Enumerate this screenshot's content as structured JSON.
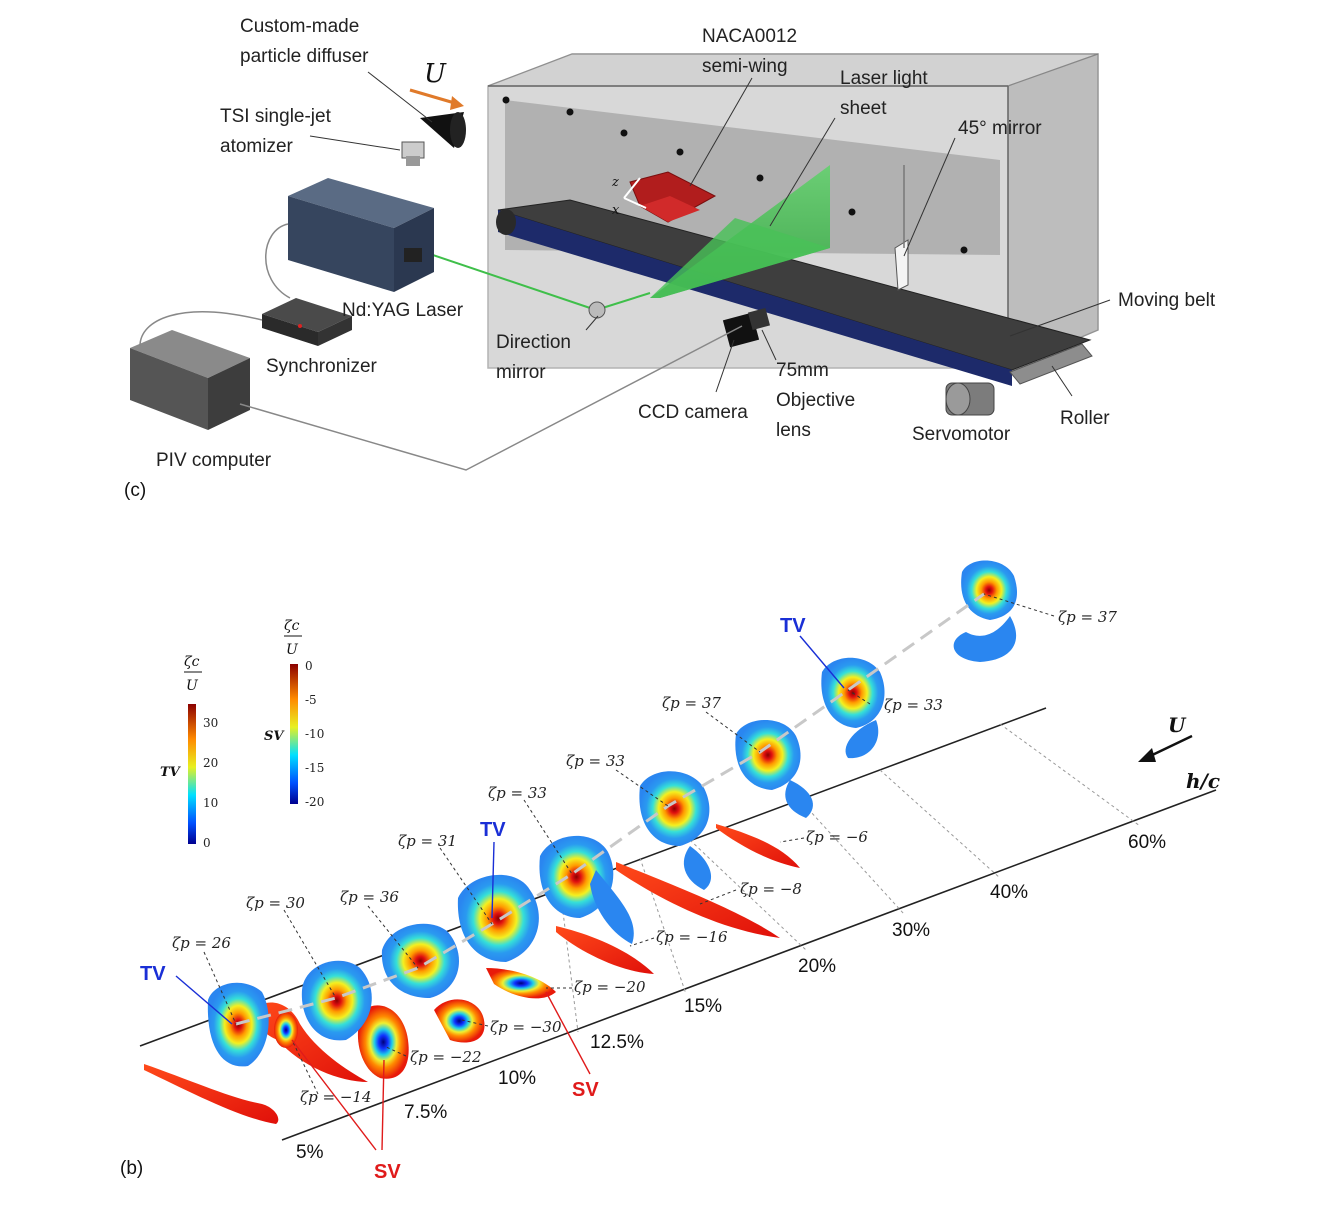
{
  "panel_c": {
    "panel_label": "(c)",
    "labels": {
      "diffuser_l1": "Custom-made",
      "diffuser_l2": "particle diffuser",
      "flow": "U",
      "atomizer_l1": "TSI single-jet",
      "atomizer_l2": "atomizer",
      "wing_l1": "NACA0012",
      "wing_l2": "semi-wing",
      "sheet_l1": "Laser light",
      "sheet_l2": "sheet",
      "mirror45": "45° mirror",
      "belt": "Moving belt",
      "laser": "Nd:YAG Laser",
      "sync": "Synchronizer",
      "dirmirror_l1": "Direction",
      "dirmirror_l2": "mirror",
      "lens_l1": "75mm",
      "lens_l2": "Objective",
      "lens_l3": "lens",
      "camera": "CCD camera",
      "servo": "Servomotor",
      "roller": "Roller",
      "pc": "PIV computer",
      "ax_z": "z",
      "ax_x": "x"
    }
  },
  "panel_b": {
    "panel_label": "(b)",
    "flow_label": "U",
    "hc_label": "h/c",
    "colorbar_tv": {
      "title_num": "ζc",
      "title_den": "U",
      "side_label": "TV",
      "ticks": [
        "30",
        "20",
        "10",
        "0"
      ]
    },
    "colorbar_sv": {
      "title_num": "ζc",
      "title_den": "U",
      "side_label": "SV",
      "ticks": [
        "0",
        "-5",
        "-10",
        "-15",
        "-20"
      ]
    },
    "heights": [
      "5%",
      "7.5%",
      "10%",
      "12.5%",
      "15%",
      "20%",
      "30%",
      "40%",
      "60%"
    ],
    "tv_peaks": [
      "ζp = 26",
      "ζp = 30",
      "ζp = 36",
      "ζp = 31",
      "ζp = 33",
      "ζp = 33",
      "ζp = 37",
      "ζp = 33",
      "ζp = 37"
    ],
    "sv_peaks": [
      "ζp = −14",
      "ζp = −22",
      "ζp = −30",
      "ζp = −20",
      "ζp = −16",
      "ζp = −8",
      "ζp = −6"
    ],
    "tv_tags": [
      "TV",
      "TV",
      "TV"
    ],
    "sv_tags": [
      "SV",
      "SV"
    ]
  },
  "colors": {
    "tv_label": "#1a2fd6",
    "sv_label": "#e01b1b",
    "laser_green": "#3fbf4a",
    "wing_red": "#b11d1d",
    "flow_arrow": "#e07a2a"
  }
}
